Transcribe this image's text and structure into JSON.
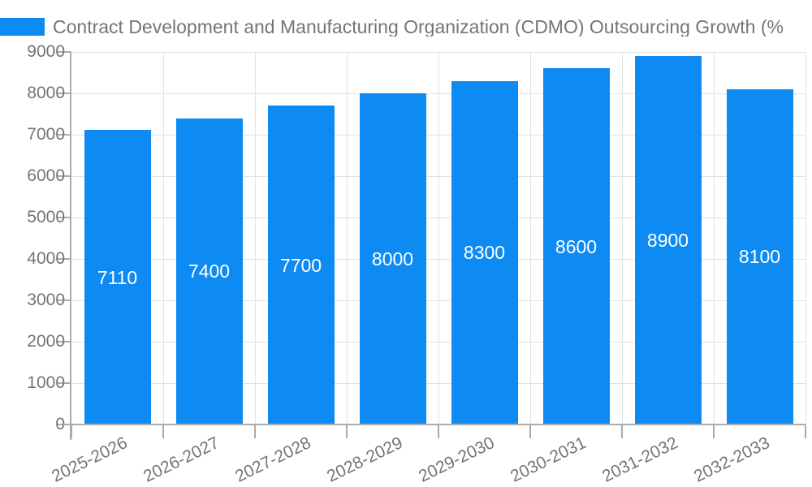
{
  "legend": {
    "swatch_color": "#0d8bf2"
  },
  "chart_data": {
    "type": "bar",
    "title": "Contract Development and Manufacturing Organization (CDMO) Outsourcing Growth (%",
    "categories": [
      "2025-2026",
      "2026-2027",
      "2027-2028",
      "2028-2029",
      "2029-2030",
      "2030-2031",
      "2031-2032",
      "2032-2033"
    ],
    "values": [
      7110,
      7400,
      7700,
      8000,
      8300,
      8600,
      8900,
      8100
    ],
    "value_labels": [
      "7110",
      "7400",
      "7700",
      "8000",
      "8300",
      "8600",
      "8900",
      "8100"
    ],
    "ytick_labels": [
      "0",
      "1000",
      "2000",
      "3000",
      "4000",
      "5000",
      "6000",
      "7000",
      "8000",
      "9000"
    ],
    "ylim": [
      0,
      9000
    ],
    "ytick_step": 1000,
    "xlabel": "",
    "ylabel": "",
    "grid": true,
    "legend_position": "top-left",
    "bar_color": "#0d8bf2",
    "value_label_color": "#ffffff",
    "axis_label_color": "#757575",
    "gridline_color": "#e2e2e2",
    "axis_line_color": "#ababab"
  }
}
